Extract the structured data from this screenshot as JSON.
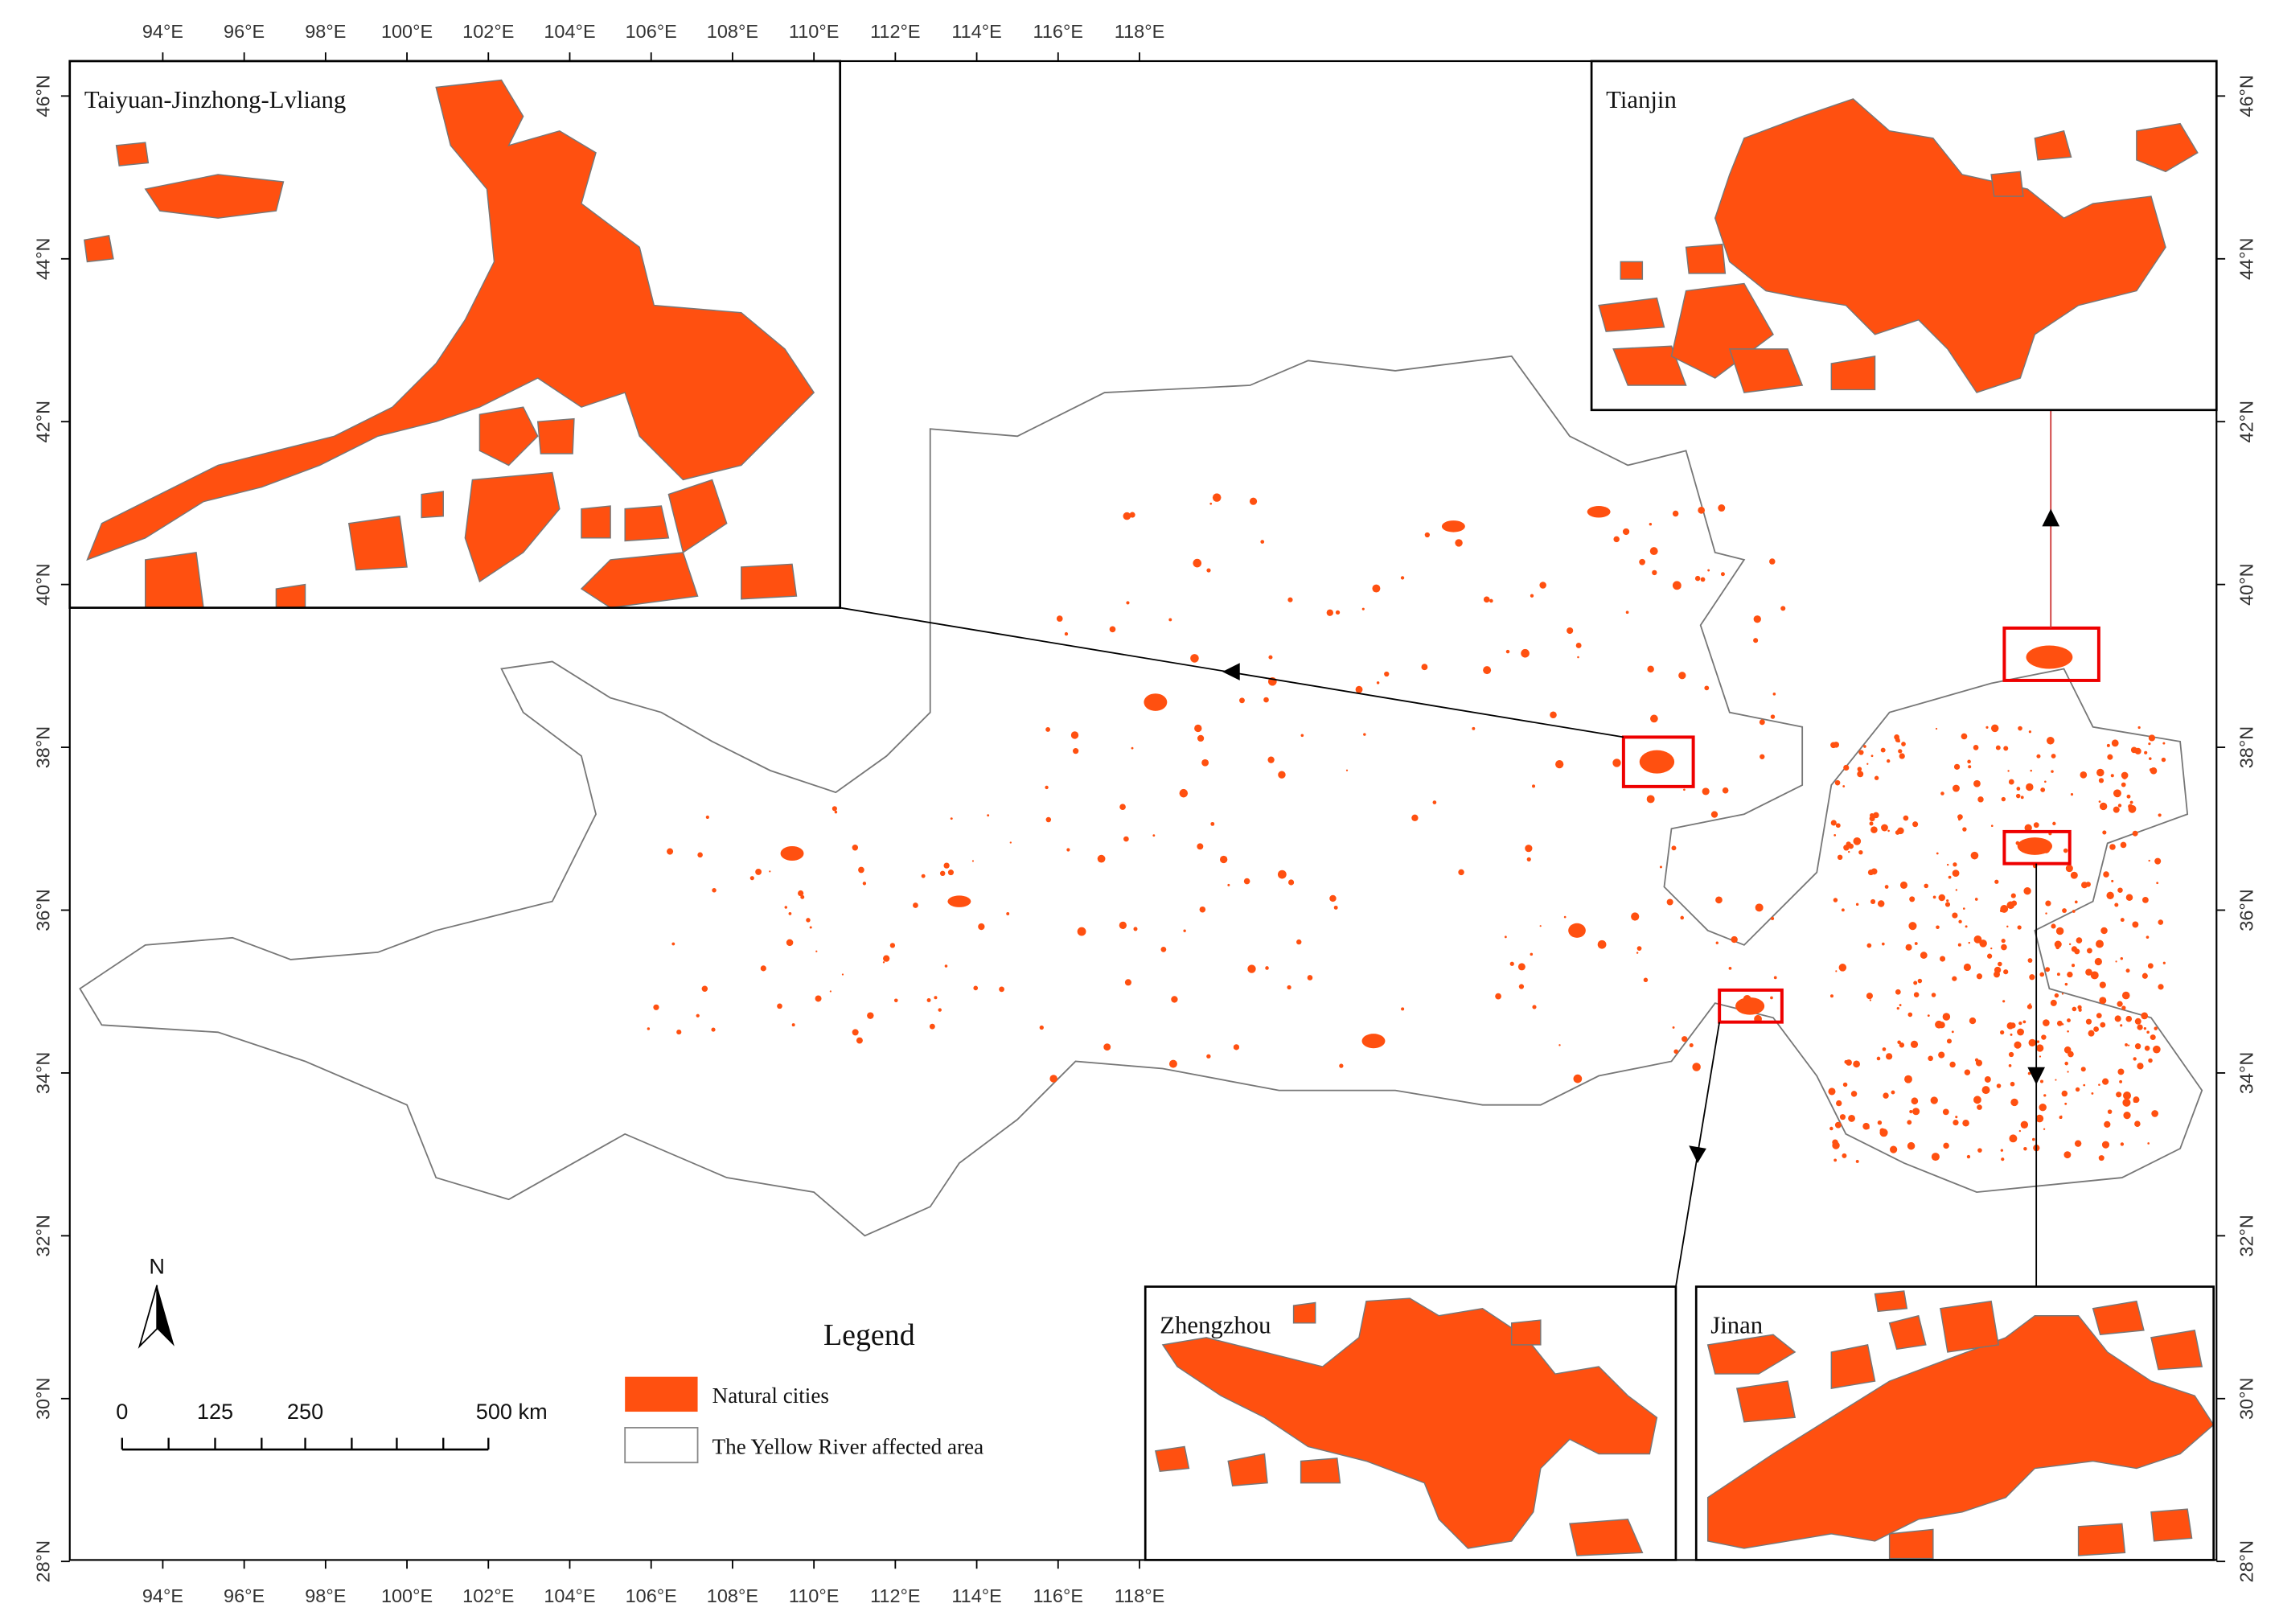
{
  "map": {
    "lon_labels": [
      "94°E",
      "96°E",
      "98°E",
      "100°E",
      "102°E",
      "104°E",
      "106°E",
      "108°E",
      "110°E",
      "112°E",
      "114°E",
      "116°E",
      "118°E"
    ],
    "lat_labels": [
      "46°N",
      "44°N",
      "42°N",
      "40°N",
      "38°N",
      "36°N",
      "34°N",
      "32°N",
      "30°N",
      "28°N"
    ],
    "insets": {
      "taiyuan": "Taiyuan-Jinzhong-Lvliang",
      "tianjin": "Tianjin",
      "zhengzhou": "Zhengzhou",
      "jinan": "Jinan"
    },
    "legend": {
      "title": "Legend",
      "items": [
        "Natural cities",
        "The Yellow River affected area"
      ]
    },
    "scale_bar": {
      "labels": [
        "0",
        "125",
        "250",
        "500 km"
      ]
    },
    "north": "N"
  }
}
